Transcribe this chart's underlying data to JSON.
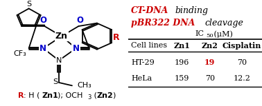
{
  "bg_color": "#ffffff",
  "red": "#cc0000",
  "blue": "#0000cc",
  "black": "#000000",
  "title1_red": "CT-DNA",
  "title1_black": " binding",
  "title2_red": "pBR322 DNA",
  "title2_black": " cleavage",
  "ic50_label": "IC",
  "ic50_sub": "50",
  "ic50_unit": " (μM)",
  "col_headers": [
    "Cell lines",
    "Zn1",
    "Zn2",
    "Cisplatin"
  ],
  "rows": [
    [
      "HT-29",
      "196",
      "19",
      "70"
    ],
    [
      "HeLa",
      "159",
      "70",
      "12.2"
    ]
  ],
  "zn2_red_row": 0,
  "caption_r": "R",
  "caption_rest": ": H (",
  "caption_zn1": "Zn1",
  "caption_mid": "); OCH",
  "caption_sub3": "3",
  "caption_zn2_open": " (",
  "caption_zn2": "Zn2",
  "caption_close": ")"
}
